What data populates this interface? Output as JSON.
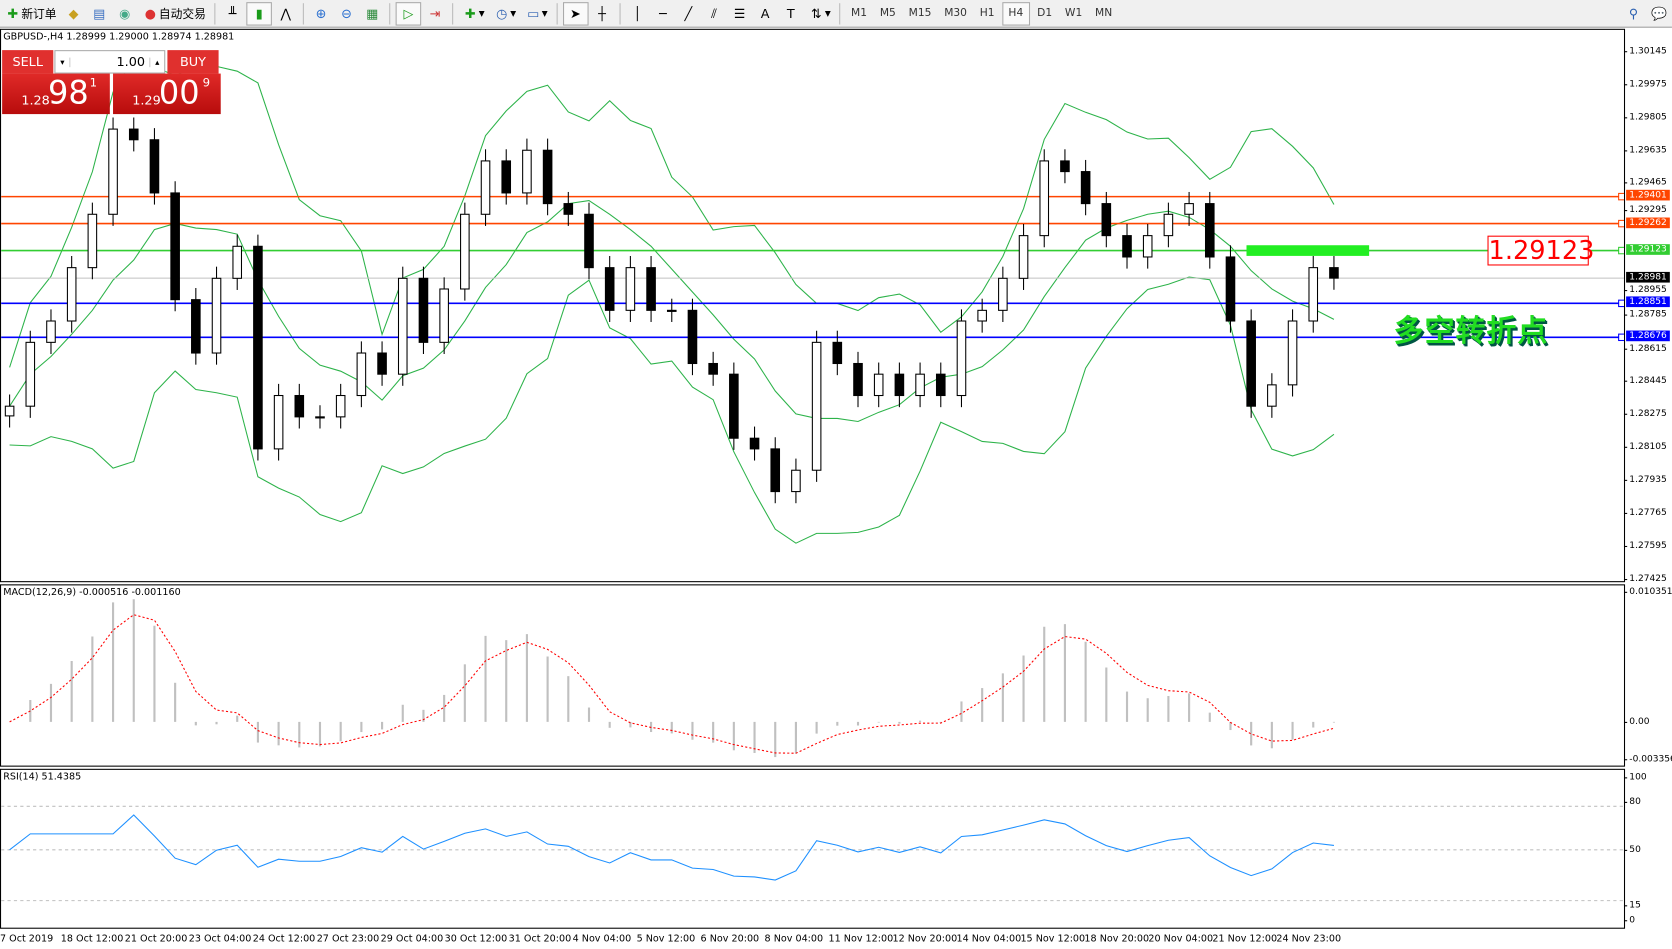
{
  "toolbar": {
    "new_order": "新订单",
    "auto_trade": "自动交易",
    "timeframes": [
      "M1",
      "M5",
      "M15",
      "M30",
      "H1",
      "H4",
      "D1",
      "W1",
      "MN"
    ],
    "active_timeframe": "H4"
  },
  "chart": {
    "header": "GBPUSD-,H4  1.28999 1.29000 1.28974 1.28981",
    "price_axis": [
      "1.30145",
      "1.29975",
      "1.29805",
      "1.29635",
      "1.29465",
      "1.29295",
      "1.28955",
      "1.28785",
      "1.28615",
      "1.28445",
      "1.28275",
      "1.28105",
      "1.27935",
      "1.27765",
      "1.27595",
      "1.27425"
    ],
    "levels": [
      {
        "price": "1.29401",
        "color": "#ff4500"
      },
      {
        "price": "1.29262",
        "color": "#ff4500"
      },
      {
        "price": "1.29123",
        "color": "#32cd32"
      },
      {
        "price": "1.28851",
        "color": "#0000ff"
      },
      {
        "price": "1.28676",
        "color": "#0000ff"
      }
    ],
    "current_price": "1.28981",
    "annotation_price": "1.29123",
    "annotation_text": "多空转折点",
    "band_color": "#2db34a"
  },
  "trade_panel": {
    "sell": "SELL",
    "buy": "BUY",
    "lot": "1.00",
    "bid_prefix": "1.28",
    "bid_big": "98",
    "bid_sup": "1",
    "ask_prefix": "1.29",
    "ask_big": "00",
    "ask_sup": "9"
  },
  "macd": {
    "label": "MACD(12,26,9) -0.000516 -0.001160",
    "axis": [
      "0.010351",
      "0.00",
      "-0.003356"
    ]
  },
  "rsi": {
    "label": "RSI(14) 51.4385",
    "axis": [
      "100",
      "80",
      "50",
      "15",
      "0"
    ]
  },
  "dates": [
    "7 Oct 2019",
    "18 Oct 12:00",
    "21 Oct 20:00",
    "23 Oct 04:00",
    "24 Oct 12:00",
    "27 Oct 23:00",
    "29 Oct 04:00",
    "30 Oct 12:00",
    "31 Oct 20:00",
    "4 Nov 04:00",
    "5 Nov 12:00",
    "6 Nov 20:00",
    "8 Nov 04:00",
    "11 Nov 12:00",
    "12 Nov 20:00",
    "14 Nov 04:00",
    "15 Nov 12:00",
    "18 Nov 20:00",
    "20 Nov 04:00",
    "21 Nov 12:00",
    "24 Nov 23:00"
  ],
  "chart_data": {
    "type": "candlestick",
    "symbol": "GBPUSD",
    "timeframe": "H4",
    "ylim": [
      1.27425,
      1.30145
    ],
    "closes": [
      1.28321,
      1.2865,
      1.2876,
      1.29035,
      1.2931,
      1.29749,
      1.29694,
      1.2942,
      1.2887,
      1.28595,
      1.2898,
      1.29145,
      1.28101,
      1.28376,
      1.28266,
      1.28266,
      1.28376,
      1.28595,
      1.28486,
      1.2898,
      1.2865,
      1.28925,
      1.2931,
      1.29585,
      1.2942,
      1.2964,
      1.29365,
      1.2931,
      1.29035,
      1.28815,
      1.29035,
      1.28815,
      1.28815,
      1.28541,
      1.28486,
      1.28156,
      1.28101,
      1.27881,
      1.27991,
      1.2865,
      1.28541,
      1.28376,
      1.28486,
      1.28376,
      1.28486,
      1.28376,
      1.2876,
      1.28815,
      1.2898,
      1.292,
      1.29585,
      1.2953,
      1.29365,
      1.292,
      1.2909,
      1.292,
      1.2931,
      1.29365,
      1.2909,
      1.2876,
      1.28321,
      1.28431,
      1.2876,
      1.29035,
      1.28981
    ]
  }
}
